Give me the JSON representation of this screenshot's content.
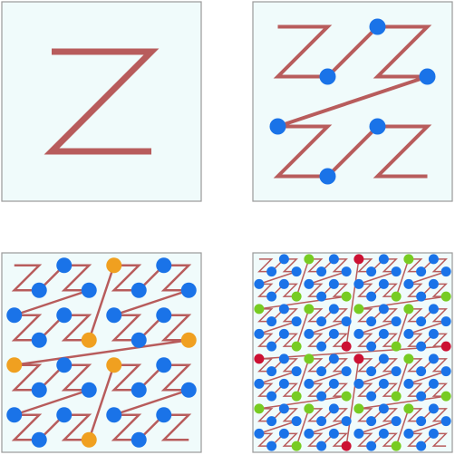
{
  "colors": {
    "panel_fill": "#f0fbfb",
    "panel_stroke": "#9a9a9a",
    "curve": "#b85c5c",
    "node_blue": "#1a73e8",
    "node_green": "#77cc22",
    "node_orange": "#f0a020",
    "node_red": "#cc1133"
  },
  "panels": [
    {
      "name": "panel-order-1",
      "order": 1
    },
    {
      "name": "panel-order-2",
      "order": 2
    },
    {
      "name": "panel-order-3",
      "order": 3
    },
    {
      "name": "panel-order-4",
      "order": 4
    }
  ]
}
